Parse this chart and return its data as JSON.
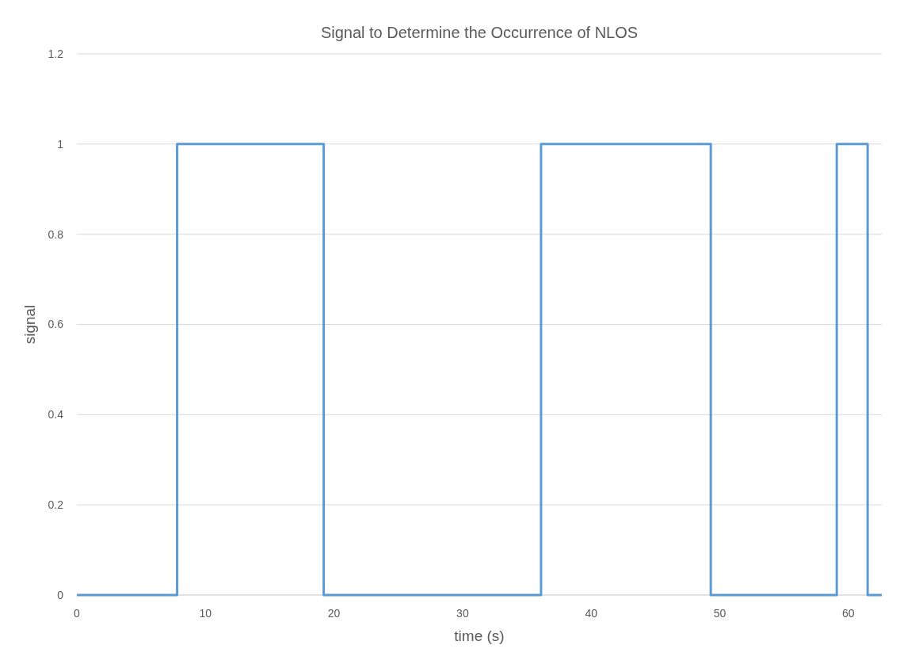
{
  "chart_data": {
    "type": "step",
    "title": "Signal to Determine the Occurrence of NLOS",
    "xlabel": "time (s)",
    "ylabel": "signal",
    "x": [
      0,
      7.8,
      19.2,
      36.1,
      49.3,
      59.1,
      61.5,
      62.6
    ],
    "series": [
      {
        "color": "#5b9bd5",
        "values": [
          0,
          1,
          0,
          1,
          0,
          1,
          0,
          0
        ]
      }
    ],
    "xlim": [
      0,
      62.6
    ],
    "xticks": [
      0,
      10,
      20,
      30,
      40,
      50,
      60
    ],
    "ylim": [
      0,
      1.2
    ],
    "yticks": [
      0,
      0.2,
      0.4,
      0.6,
      0.8,
      1,
      1.2
    ],
    "grid": "y"
  }
}
